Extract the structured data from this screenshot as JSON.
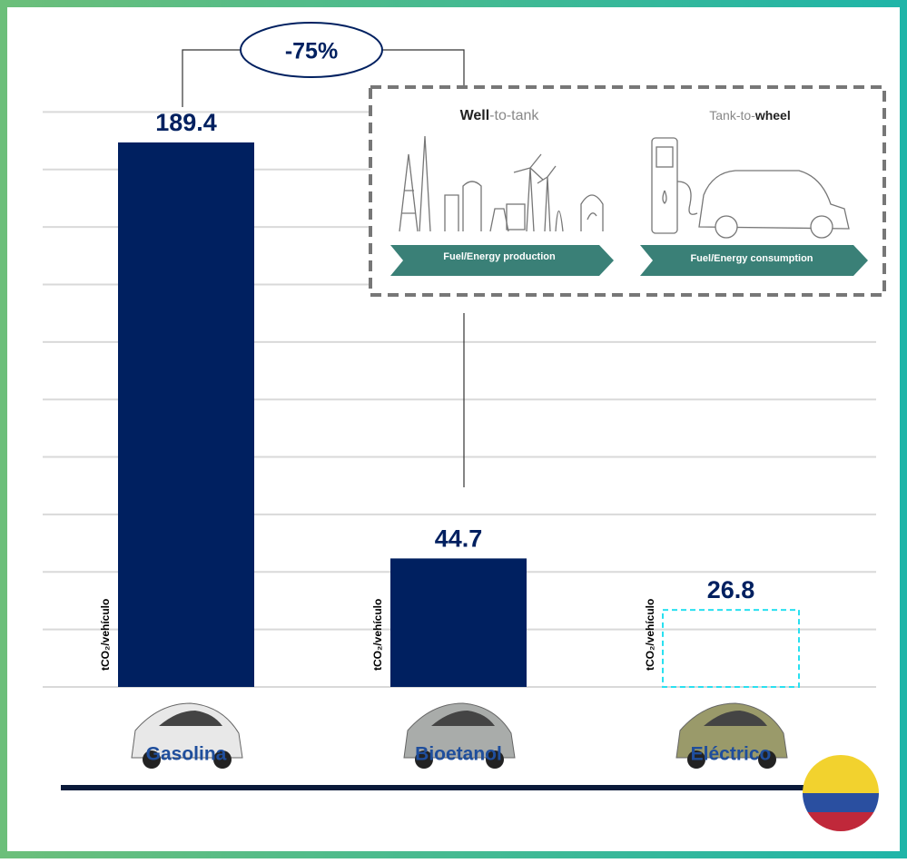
{
  "chart_data": {
    "type": "bar",
    "categories": [
      "Gasolina",
      "Bioetanol",
      "Eléctrico"
    ],
    "values": [
      189.4,
      44.7,
      26.8
    ],
    "colors": [
      "#002060",
      "#002060",
      "#29e0f0"
    ],
    "bar_styles": [
      "solid",
      "solid",
      "dashed"
    ],
    "unit_label": "tCO₂/vehículo",
    "ylim": [
      0,
      200
    ],
    "yticks": [
      0,
      20,
      40,
      60,
      80,
      100,
      120,
      140,
      160,
      180,
      200
    ],
    "grid": true,
    "annotation": "-75%",
    "inset": {
      "left_title_bold": "Well",
      "left_title_rest": "-to-tank",
      "right_title_rest": "Tank-to-",
      "right_title_bold": "wheel",
      "left_banner": "Fuel/Energy production",
      "right_banner": "Fuel/Energy consumption"
    }
  }
}
